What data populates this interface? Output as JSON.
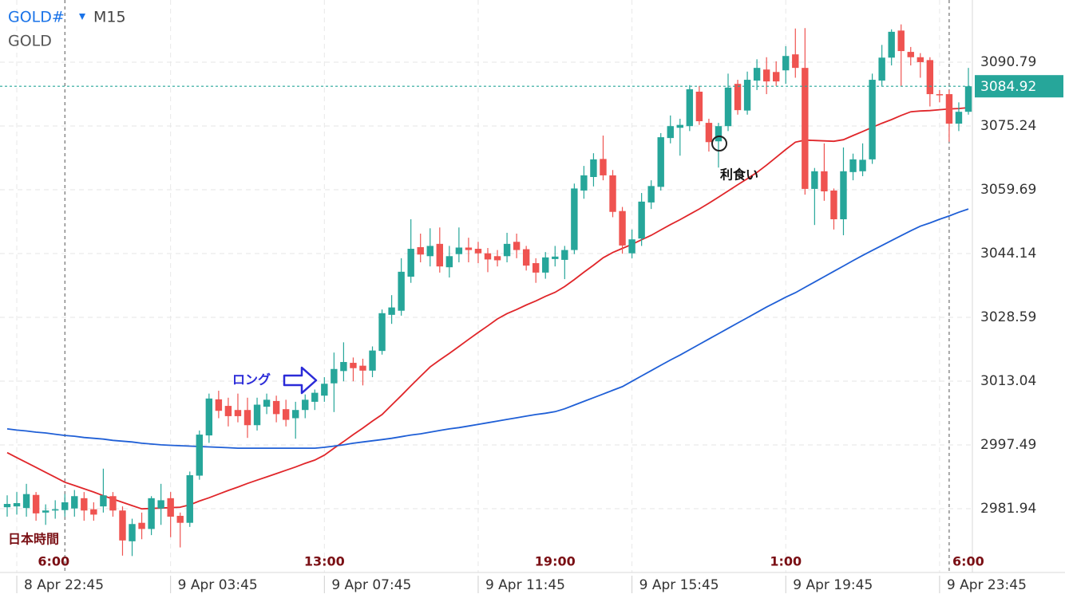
{
  "chart_data": {
    "type": "candlestick",
    "symbol": "GOLD#",
    "timeframe": "M15",
    "title": "GOLD",
    "categories": [
      null,
      "8 Apr 22:45",
      null,
      null,
      null,
      null,
      null,
      null,
      null,
      null,
      null,
      null,
      null,
      null,
      null,
      null,
      null,
      "9 Apr 03:45",
      null,
      null,
      null,
      null,
      null,
      null,
      null,
      null,
      null,
      null,
      null,
      null,
      null,
      null,
      null,
      "9 Apr 07:45",
      null,
      null,
      null,
      null,
      null,
      null,
      null,
      null,
      null,
      null,
      null,
      null,
      null,
      null,
      null,
      "9 Apr 11:45",
      null,
      null,
      null,
      null,
      null,
      null,
      null,
      null,
      null,
      null,
      null,
      null,
      null,
      null,
      null,
      "9 Apr 15:45",
      null,
      null,
      null,
      null,
      null,
      null,
      null,
      null,
      null,
      null,
      null,
      null,
      null,
      null,
      null,
      "9 Apr 19:45",
      null,
      null,
      null,
      null,
      null,
      null,
      null,
      null,
      null,
      null,
      null,
      null,
      null,
      null,
      null,
      "9 Apr 23:45",
      null,
      null,
      null
    ],
    "open": [
      2982.3,
      2982.5,
      2982.1,
      2985.3,
      2981.0,
      2981.5,
      2981.6,
      2982.0,
      2984.5,
      2981.8,
      2982.5,
      2985.0,
      2981.5,
      2974.0,
      2978.5,
      2977.0,
      2982.0,
      2984.5,
      2980.2,
      2978.5,
      2990.0,
      2999.8,
      3008.6,
      3007.0,
      3006.0,
      3006.0,
      3002.3,
      3006.8,
      3008.2,
      3006.2,
      3004.0,
      3006.0,
      3008.0,
      3009.5,
      3012.5,
      3015.5,
      3017.5,
      3016.8,
      3015.6,
      3020.4,
      3029.2,
      3030.2,
      3038.5,
      3045.7,
      3043.5,
      3046.5,
      3040.8,
      3044.0,
      3045.6,
      3045.3,
      3044.2,
      3043.5,
      3043.5,
      3047.0,
      3045.2,
      3041.8,
      3039.5,
      3042.8,
      3042.6,
      3045.0,
      3059.5,
      3062.8,
      3067.2,
      3063.2,
      3054.5,
      3044.2,
      3047.8,
      3056.6,
      3060.4,
      3072.3,
      3074.8,
      3075.2,
      3083.6,
      3076.0,
      3071.5,
      3075.2,
      3085.5,
      3079.0,
      3086.3,
      3089.0,
      3088.4,
      3088.8,
      3092.7,
      3089.4,
      3059.9,
      3064.2,
      3059.5,
      3052.5,
      3064.0,
      3064.2,
      3067.1,
      3086.3,
      3091.9,
      3098.5,
      3093.3,
      3092.0,
      3091.3,
      3083.0,
      3083.0,
      3075.8,
      3078.7
    ],
    "high": [
      2985.2,
      2986.0,
      2988.0,
      2986.0,
      2983.0,
      2984.0,
      2985.5,
      2986.5,
      2986.0,
      2983.5,
      2991.7,
      2986.0,
      2982.5,
      2979.5,
      2981.0,
      2985.0,
      2988.0,
      2986.0,
      2981.0,
      2991.0,
      3001.0,
      3010.0,
      3010.7,
      3009.0,
      3010.0,
      3009.0,
      3009.0,
      3010.0,
      3009.5,
      3008.5,
      3008.0,
      3009.8,
      3011.0,
      3014.0,
      3020.0,
      3022.5,
      3018.8,
      3018.5,
      3021.5,
      3030.5,
      3034.0,
      3043.0,
      3052.5,
      3049.0,
      3050.3,
      3050.5,
      3046.0,
      3050.5,
      3048.0,
      3047.0,
      3045.5,
      3045.0,
      3049.2,
      3049.0,
      3046.0,
      3043.0,
      3044.5,
      3046.0,
      3046.0,
      3061.2,
      3065.5,
      3068.6,
      3072.9,
      3064.5,
      3055.5,
      3050.0,
      3058.9,
      3062.0,
      3073.5,
      3077.8,
      3077.0,
      3085.2,
      3085.0,
      3077.0,
      3076.0,
      3088.0,
      3086.5,
      3088.5,
      3091.5,
      3092.0,
      3091.0,
      3094.7,
      3099.0,
      3099.1,
      3065.0,
      3071.0,
      3060.0,
      3070.0,
      3068.5,
      3071.0,
      3088.0,
      3095.0,
      3098.8,
      3100.0,
      3094.5,
      3093.0,
      3092.0,
      3084.0,
      3084.0,
      3081.0,
      3089.4
    ],
    "low": [
      2980.0,
      2980.5,
      2980.0,
      2979.0,
      2978.0,
      2979.5,
      2980.0,
      2980.0,
      2979.0,
      2979.0,
      2981.0,
      2980.0,
      2970.5,
      2970.4,
      2974.5,
      2975.5,
      2978.0,
      2975.0,
      2972.5,
      2977.5,
      2989.0,
      2998.0,
      3004.0,
      3002.0,
      3003.0,
      2999.2,
      3001.0,
      3005.0,
      3003.0,
      3002.0,
      2999.0,
      3004.0,
      3006.0,
      3008.0,
      3005.5,
      3013.0,
      3013.0,
      3012.0,
      3014.0,
      3019.5,
      3027.0,
      3029.0,
      3037.0,
      3042.0,
      3041.0,
      3039.5,
      3038.3,
      3042.0,
      3042.0,
      3041.8,
      3039.6,
      3041.0,
      3042.0,
      3043.0,
      3040.0,
      3037.0,
      3038.0,
      3041.0,
      3037.9,
      3044.0,
      3057.5,
      3060.5,
      3062.0,
      3053.0,
      3044.1,
      3043.0,
      3046.0,
      3055.0,
      3059.5,
      3071.0,
      3068.0,
      3074.0,
      3075.5,
      3069.0,
      3065.1,
      3074.0,
      3078.0,
      3078.0,
      3084.0,
      3083.0,
      3085.0,
      3085.5,
      3087.0,
      3058.5,
      3051.1,
      3057.0,
      3050.0,
      3048.6,
      3062.0,
      3063.0,
      3066.0,
      3085.0,
      3090.0,
      3084.9,
      3090.0,
      3087.0,
      3080.0,
      3081.0,
      3071.4,
      3074.0,
      3078.0
    ],
    "close": [
      2983.1,
      2983.3,
      2985.5,
      2980.8,
      2981.5,
      2981.8,
      2983.5,
      2985.0,
      2981.5,
      2980.5,
      2985.2,
      2981.5,
      2974.2,
      2978.2,
      2977.0,
      2984.5,
      2984.0,
      2980.0,
      2978.5,
      2990.1,
      3000.0,
      3008.8,
      3005.8,
      3004.5,
      3004.5,
      3002.3,
      3007.3,
      3008.5,
      3005.0,
      3003.6,
      3006.0,
      3008.5,
      3010.2,
      3012.4,
      3016.0,
      3017.7,
      3016.2,
      3015.6,
      3020.5,
      3029.6,
      3031.0,
      3039.7,
      3045.3,
      3043.9,
      3046.0,
      3041.0,
      3043.5,
      3045.6,
      3045.0,
      3044.2,
      3042.7,
      3042.5,
      3046.5,
      3045.0,
      3041.2,
      3039.5,
      3043.2,
      3043.4,
      3045.0,
      3060.0,
      3063.2,
      3067.1,
      3063.2,
      3054.3,
      3046.1,
      3047.6,
      3056.8,
      3060.6,
      3072.5,
      3075.2,
      3075.5,
      3084.2,
      3076.4,
      3071.3,
      3075.2,
      3084.6,
      3079.1,
      3086.5,
      3089.4,
      3086.1,
      3086.1,
      3092.3,
      3089.4,
      3059.9,
      3064.2,
      3059.3,
      3052.5,
      3064.2,
      3067.1,
      3067.0,
      3086.5,
      3091.9,
      3098.2,
      3093.5,
      3092.0,
      3090.8,
      3083.0,
      3082.8,
      3075.8,
      3078.7,
      3084.92
    ],
    "up_color": "#26a69a",
    "down_color": "#ef5350",
    "series": [
      {
        "color": "#e0262a",
        "values": [
          2995.6,
          2994.4,
          2993.2,
          2992.0,
          2990.8,
          2989.6,
          2988.4,
          2987.6,
          2986.8,
          2986.0,
          2985.1,
          2984.3,
          2983.5,
          2982.7,
          2981.9,
          2982.0,
          2982.1,
          2982.2,
          2982.3,
          2982.9,
          2983.8,
          2984.6,
          2985.5,
          2986.4,
          2987.2,
          2988.1,
          2988.9,
          2989.7,
          2990.5,
          2991.3,
          2992.1,
          2993.0,
          2993.8,
          2995.0,
          2996.7,
          2998.3,
          3000.0,
          3001.6,
          3003.3,
          3004.9,
          3007.2,
          3009.5,
          3011.9,
          3014.2,
          3016.5,
          3018.2,
          3019.8,
          3021.5,
          3023.2,
          3024.9,
          3026.5,
          3028.2,
          3029.5,
          3030.5,
          3031.6,
          3032.6,
          3033.7,
          3034.7,
          3036.1,
          3037.8,
          3039.6,
          3041.3,
          3043.1,
          3044.4,
          3045.4,
          3046.4,
          3047.5,
          3048.6,
          3049.9,
          3051.2,
          3052.4,
          3053.7,
          3055.0,
          3056.4,
          3057.9,
          3059.4,
          3060.9,
          3062.4,
          3063.9,
          3065.7,
          3067.6,
          3069.5,
          3071.3,
          3071.8,
          3071.7,
          3071.6,
          3071.5,
          3071.9,
          3072.9,
          3073.9,
          3074.9,
          3075.9,
          3076.8,
          3077.8,
          3078.7,
          3078.9,
          3079.0,
          3079.2,
          3079.4,
          3079.5,
          3079.7
        ]
      },
      {
        "color": "#1f5fd6",
        "values": [
          3001.4,
          3001.1,
          3000.9,
          3000.6,
          3000.4,
          3000.1,
          2999.8,
          2999.6,
          2999.3,
          2999.1,
          2998.9,
          2998.6,
          2998.4,
          2998.2,
          2997.9,
          2997.7,
          2997.5,
          2997.4,
          2997.3,
          2997.2,
          2997.1,
          2997.0,
          2996.9,
          2996.8,
          2996.7,
          2996.7,
          2996.7,
          2996.7,
          2996.7,
          2996.7,
          2996.7,
          2996.7,
          2996.7,
          2996.9,
          2997.2,
          2997.5,
          2997.9,
          2998.2,
          2998.5,
          2998.8,
          2999.1,
          2999.5,
          2999.9,
          3000.2,
          3000.6,
          3001.0,
          3001.4,
          3001.7,
          3002.1,
          3002.5,
          3002.9,
          3003.3,
          3003.7,
          3004.1,
          3004.5,
          3004.9,
          3005.2,
          3005.6,
          3006.3,
          3007.2,
          3008.1,
          3009.0,
          3009.9,
          3010.8,
          3011.7,
          3013.0,
          3014.3,
          3015.6,
          3016.9,
          3018.2,
          3019.4,
          3020.7,
          3022.0,
          3023.3,
          3024.6,
          3025.9,
          3027.2,
          3028.5,
          3029.8,
          3031.1,
          3032.3,
          3033.5,
          3034.6,
          3035.9,
          3037.2,
          3038.5,
          3039.8,
          3041.1,
          3042.4,
          3043.7,
          3044.9,
          3046.1,
          3047.3,
          3048.5,
          3049.7,
          3050.8,
          3051.6,
          3052.5,
          3053.3,
          3054.2,
          3055.0
        ]
      }
    ],
    "ylim": [
      2966.39,
      3105.95
    ],
    "yticks": [
      2981.94,
      2997.49,
      3013.04,
      3028.59,
      3044.14,
      3059.69,
      3075.24,
      3090.79
    ],
    "grid": true,
    "last_price": 3084.92,
    "last_price_color": "#26a69a",
    "jst_title": "日本時間",
    "jst_labels": [
      null,
      null,
      null,
      null,
      null,
      null,
      "6:00",
      null,
      null,
      null,
      null,
      null,
      null,
      null,
      null,
      null,
      null,
      null,
      null,
      null,
      null,
      null,
      null,
      null,
      null,
      null,
      null,
      null,
      null,
      null,
      null,
      null,
      null,
      "13:00",
      null,
      null,
      null,
      null,
      null,
      null,
      null,
      null,
      null,
      null,
      null,
      null,
      null,
      null,
      null,
      null,
      null,
      null,
      null,
      null,
      null,
      null,
      null,
      "19:00",
      null,
      null,
      null,
      null,
      null,
      null,
      null,
      null,
      null,
      null,
      null,
      null,
      null,
      null,
      null,
      null,
      null,
      null,
      null,
      null,
      null,
      null,
      null,
      "1:00",
      null,
      null,
      null,
      null,
      null,
      null,
      null,
      null,
      null,
      null,
      null,
      null,
      null,
      null,
      null,
      null,
      "6:00",
      null,
      null
    ],
    "annotations": {
      "long": "ロング",
      "take_profit": "利食い"
    }
  }
}
